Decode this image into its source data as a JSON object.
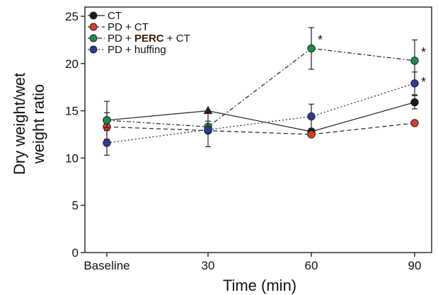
{
  "chart_data": {
    "type": "line",
    "title": "",
    "xlabel": "Time (min)",
    "ylabel_lines": [
      "Dry weight/wet",
      "weight ratio"
    ],
    "categories": [
      "Baseline",
      "30",
      "60",
      "90"
    ],
    "ylim": [
      0,
      25
    ],
    "yticks": [
      0,
      5,
      10,
      15,
      20,
      25
    ],
    "grid": false,
    "legend_position": "top-left",
    "series": [
      {
        "name": "CT",
        "color": "#1a1a1a",
        "line_style": "solid",
        "values": [
          14.0,
          15.0,
          12.8,
          15.9
        ],
        "errors": [
          2.0,
          0.0,
          0.0,
          0.7
        ],
        "markers": [
          "circle",
          "triangle",
          "circle",
          "circle"
        ],
        "significant": [
          false,
          false,
          false,
          false
        ]
      },
      {
        "name": "PD + CT",
        "color": "#e03a2c",
        "line_style": "dashed",
        "values": [
          13.3,
          12.9,
          12.5,
          13.7
        ],
        "errors": [
          0.0,
          0.0,
          0.0,
          0.0
        ],
        "markers": [
          "circle",
          "circle",
          "circle",
          "circle"
        ],
        "significant": [
          false,
          false,
          false,
          false
        ]
      },
      {
        "name_parts": [
          "PD + ",
          "PERC",
          " + CT"
        ],
        "name_highlight_color": "#3a1d05",
        "color": "#1e8f4a",
        "line_style": "dashdot",
        "values": [
          14.0,
          13.3,
          21.6,
          20.3
        ],
        "errors": [
          0.8,
          0.6,
          2.2,
          2.2
        ],
        "markers": [
          "circle",
          "circle",
          "circle",
          "circle"
        ],
        "significant": [
          false,
          false,
          true,
          true
        ]
      },
      {
        "name": "PD + huffing",
        "color": "#2b3a9a",
        "line_style": "dotted",
        "values": [
          11.6,
          13.0,
          14.4,
          17.9
        ],
        "errors": [
          1.3,
          1.8,
          1.3,
          1.2
        ],
        "markers": [
          "circle",
          "circle",
          "circle",
          "circle"
        ],
        "significant": [
          false,
          false,
          false,
          true
        ]
      }
    ],
    "significance_symbol": "*"
  }
}
